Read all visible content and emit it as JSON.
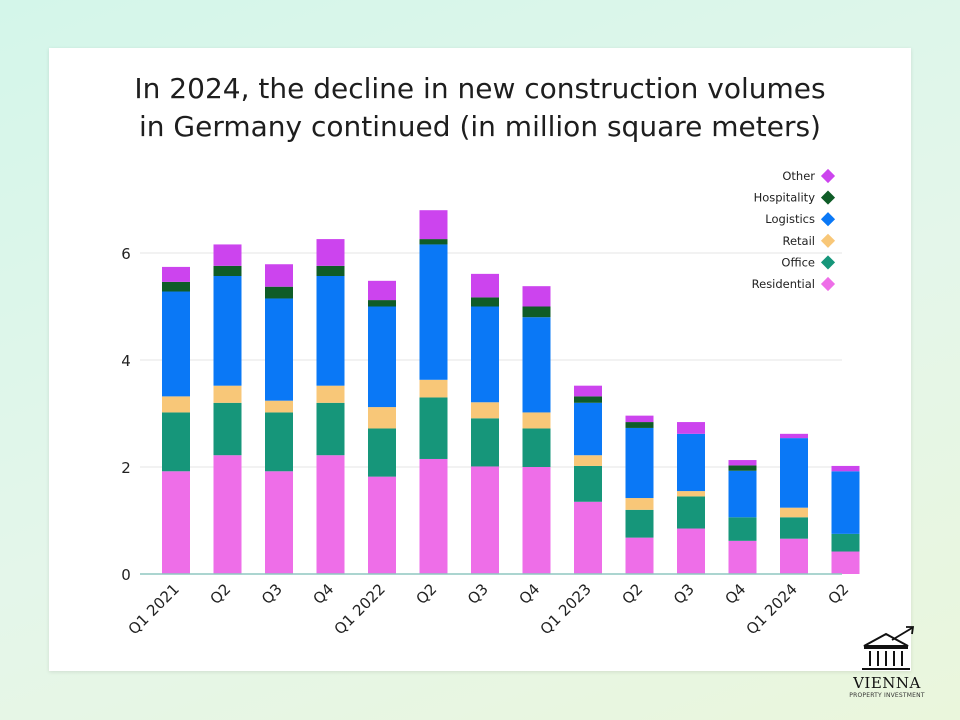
{
  "chart_data": {
    "type": "bar",
    "stacked": true,
    "title": "In 2024, the decline in new construction volumes in Germany continued (in million square meters)",
    "title_lines": [
      "In 2024, the decline in new construction volumes",
      "in Germany continued (in million square meters)"
    ],
    "xlabel": "",
    "ylabel": "",
    "ylim": [
      0,
      6.9
    ],
    "yticks": [
      0,
      2,
      4,
      6
    ],
    "grid": true,
    "legend_position": "top-right",
    "categories": [
      "Q1 2021",
      "Q2",
      "Q3",
      "Q4",
      "Q1 2022",
      "Q2",
      "Q3",
      "Q4",
      "Q1 2023",
      "Q2",
      "Q3",
      "Q4",
      "Q1 2024",
      "Q2"
    ],
    "series": [
      {
        "name": "Residential",
        "color": "#ee6ee8",
        "values": [
          1.92,
          2.22,
          1.92,
          2.22,
          1.82,
          2.15,
          2.01,
          2.0,
          1.35,
          0.68,
          0.85,
          0.62,
          0.66,
          0.42
        ]
      },
      {
        "name": "Office",
        "color": "#16967a",
        "values": [
          1.1,
          0.98,
          1.1,
          0.98,
          0.9,
          1.15,
          0.9,
          0.72,
          0.67,
          0.52,
          0.6,
          0.44,
          0.4,
          0.33
        ]
      },
      {
        "name": "Retail",
        "color": "#f8c778",
        "values": [
          0.3,
          0.32,
          0.22,
          0.32,
          0.4,
          0.33,
          0.3,
          0.3,
          0.2,
          0.22,
          0.1,
          0.0,
          0.18,
          0.0
        ]
      },
      {
        "name": "Logistics",
        "color": "#0a78f6",
        "values": [
          1.96,
          2.05,
          1.91,
          2.05,
          1.88,
          2.53,
          1.79,
          1.78,
          0.98,
          1.31,
          1.07,
          0.87,
          1.3,
          1.17
        ]
      },
      {
        "name": "Hospitality",
        "color": "#0f5c27",
        "values": [
          0.18,
          0.19,
          0.22,
          0.19,
          0.12,
          0.1,
          0.17,
          0.2,
          0.12,
          0.11,
          0.0,
          0.1,
          0.0,
          0.0
        ]
      },
      {
        "name": "Other",
        "color": "#cc44ee",
        "values": [
          0.28,
          0.4,
          0.42,
          0.5,
          0.36,
          0.54,
          0.44,
          0.38,
          0.2,
          0.12,
          0.22,
          0.1,
          0.08,
          0.1
        ]
      }
    ]
  },
  "logo": {
    "name": "VIENNA",
    "tagline": "PROPERTY INVESTMENT",
    "colors": {
      "ink": "#111111"
    }
  }
}
